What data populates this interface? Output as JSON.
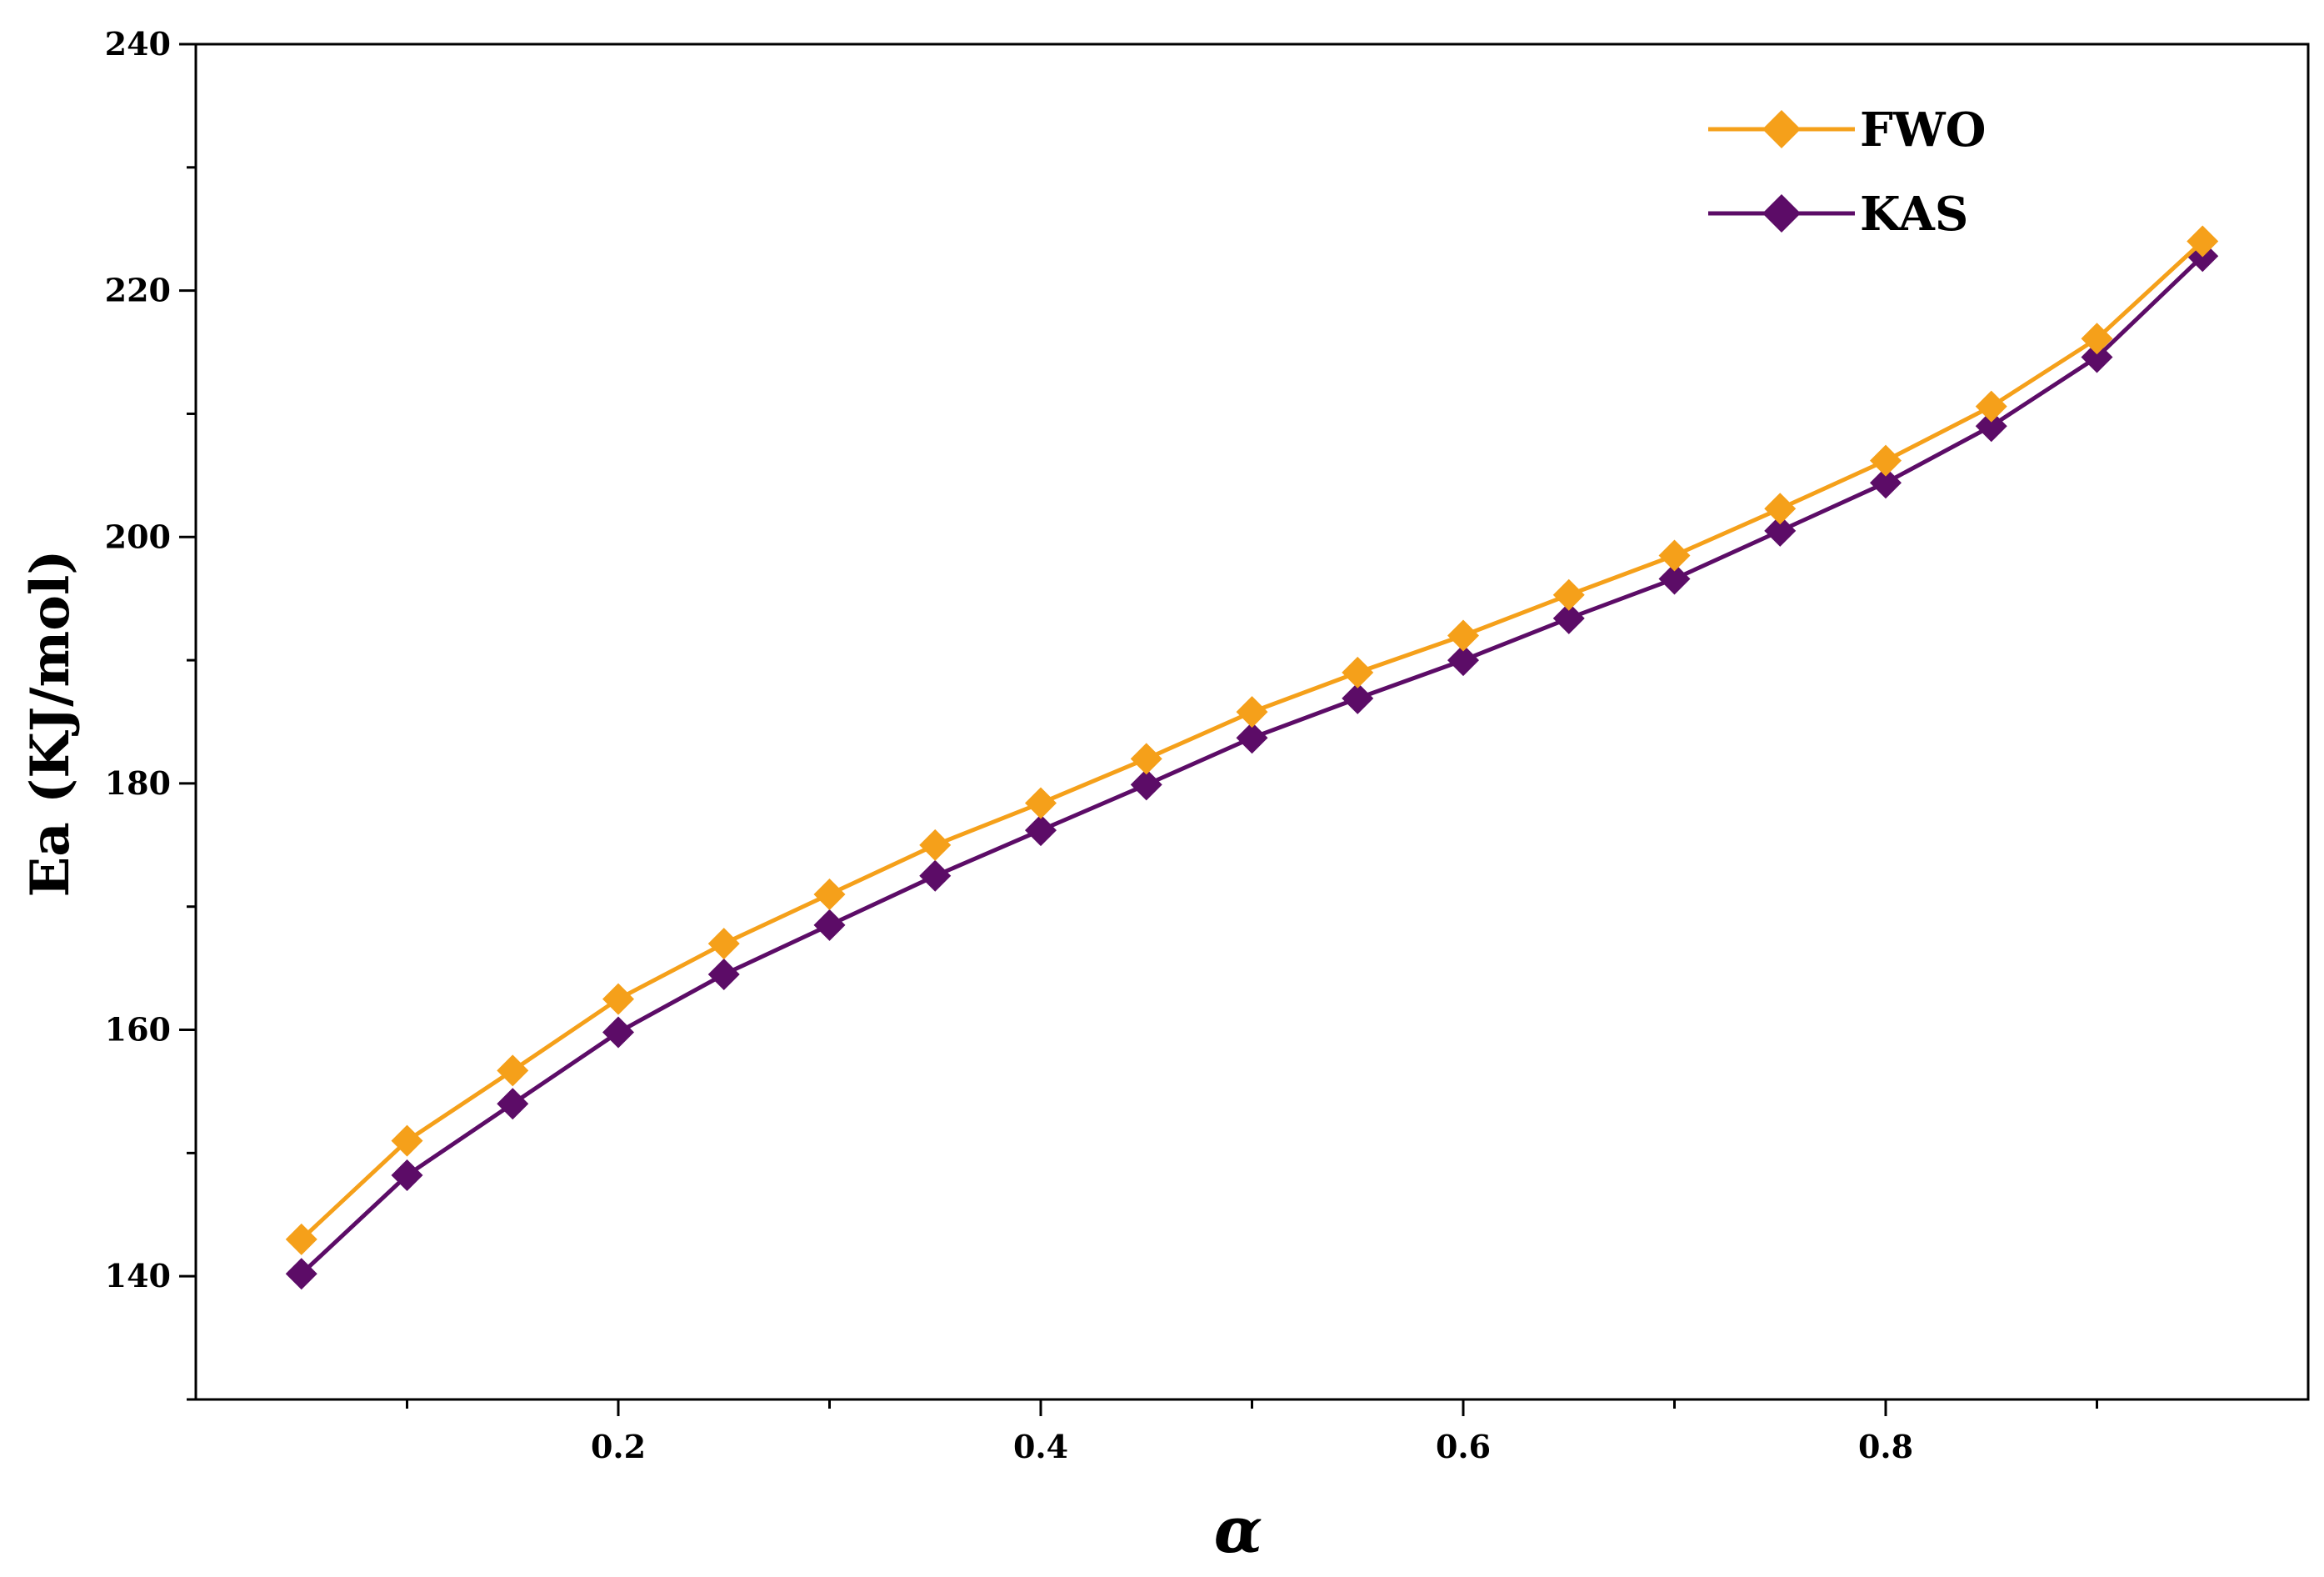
{
  "chart_data": {
    "type": "line",
    "xlabel": "α",
    "ylabel": "Ea (KJ/mol)",
    "xlim": [
      0.0,
      1.0
    ],
    "ylim": [
      130,
      240
    ],
    "xticks": [
      0.2,
      0.4,
      0.6,
      0.8
    ],
    "xtick_labels": [
      "0.2",
      "0.4",
      "0.6",
      "0.8"
    ],
    "xminor_ticks": [
      0.1,
      0.3,
      0.5,
      0.7,
      0.9
    ],
    "yticks": [
      140,
      160,
      180,
      200,
      220,
      240
    ],
    "ytick_labels": [
      "140",
      "160",
      "180",
      "200",
      "220",
      "240"
    ],
    "yminor_ticks": [
      130,
      150,
      170,
      190,
      210,
      230
    ],
    "grid": false,
    "legend_position": "top-right",
    "x": [
      0.05,
      0.1,
      0.15,
      0.2,
      0.25,
      0.3,
      0.35,
      0.4,
      0.45,
      0.5,
      0.55,
      0.6,
      0.65,
      0.7,
      0.75,
      0.8,
      0.85,
      0.9,
      0.95
    ],
    "series": [
      {
        "name": "FWO",
        "color": "#F5A01A",
        "marker": "diamond",
        "values": [
          143.0,
          151.0,
          156.7,
          162.5,
          167.0,
          171.0,
          175.0,
          178.4,
          182.0,
          185.8,
          189.0,
          192.0,
          195.3,
          198.5,
          202.3,
          206.2,
          210.6,
          216.1,
          224.0
        ]
      },
      {
        "name": "KAS",
        "color": "#5C0C67",
        "marker": "diamond",
        "values": [
          140.2,
          148.2,
          154.0,
          159.8,
          164.5,
          168.5,
          172.5,
          176.2,
          179.9,
          183.7,
          186.9,
          190.0,
          193.4,
          196.6,
          200.5,
          204.4,
          209.0,
          214.6,
          222.8
        ]
      }
    ]
  }
}
